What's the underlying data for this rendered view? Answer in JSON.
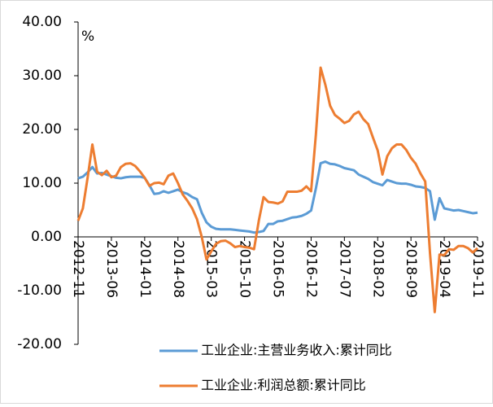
{
  "chart_data": {
    "type": "line",
    "y_label": "%",
    "ylim": [
      -20,
      40
    ],
    "yticks": [
      {
        "value": -20,
        "label": "-20.00"
      },
      {
        "value": -10,
        "label": "-10.00"
      },
      {
        "value": 0,
        "label": "0.00"
      },
      {
        "value": 10,
        "label": "10.00"
      },
      {
        "value": 20,
        "label": "20.00"
      },
      {
        "value": 30,
        "label": "30.00"
      },
      {
        "value": 40,
        "label": "40.00"
      }
    ],
    "categories": [
      "2012-11",
      null,
      null,
      null,
      null,
      null,
      null,
      "2013-06",
      null,
      null,
      null,
      null,
      null,
      null,
      "2014-01",
      null,
      null,
      null,
      null,
      null,
      null,
      "2014-08",
      null,
      null,
      null,
      null,
      null,
      null,
      "2015-03",
      null,
      null,
      null,
      null,
      null,
      null,
      "2015-10",
      null,
      null,
      null,
      null,
      null,
      null,
      "2016-05",
      null,
      null,
      null,
      null,
      null,
      null,
      "2016-12",
      null,
      null,
      null,
      null,
      null,
      null,
      "2017-07",
      null,
      null,
      null,
      null,
      null,
      null,
      "2018-02",
      null,
      null,
      null,
      null,
      null,
      null,
      "2018-09",
      null,
      null,
      null,
      null,
      null,
      null,
      "2019-04",
      null,
      null,
      null,
      null,
      null,
      null,
      "2019-11"
    ],
    "series": [
      {
        "name": "工业企业:主营业务收入:累计同比",
        "color": "#5b9bd5",
        "values": [
          10.9,
          11.2,
          12.0,
          13.0,
          11.8,
          11.9,
          11.6,
          11.3,
          11.0,
          10.9,
          11.1,
          11.2,
          11.2,
          11.2,
          11.0,
          9.6,
          8.0,
          8.1,
          8.5,
          8.2,
          8.5,
          8.8,
          8.3,
          8.0,
          7.4,
          7.0,
          4.5,
          2.7,
          1.9,
          1.5,
          1.4,
          1.4,
          1.4,
          1.3,
          1.2,
          1.1,
          1.0,
          0.8,
          0.9,
          1.1,
          2.4,
          2.4,
          2.9,
          3.0,
          3.3,
          3.6,
          3.7,
          3.9,
          4.3,
          4.9,
          9.0,
          13.7,
          14.0,
          13.6,
          13.5,
          13.2,
          12.8,
          12.6,
          12.4,
          11.6,
          11.2,
          10.8,
          10.2,
          9.9,
          9.6,
          10.6,
          10.3,
          10.0,
          9.9,
          9.9,
          9.7,
          9.4,
          9.3,
          9.1,
          8.5,
          3.2,
          7.2,
          5.3,
          5.1,
          4.9,
          5.0,
          4.8,
          4.6,
          4.4,
          4.5
        ]
      },
      {
        "name": "工业企业:利润总额:累计同比",
        "color": "#ed7d31",
        "values": [
          3.0,
          5.3,
          11.0,
          17.2,
          12.1,
          11.5,
          12.3,
          11.1,
          11.4,
          13.0,
          13.6,
          13.7,
          13.2,
          12.2,
          11.0,
          9.5,
          10.0,
          10.1,
          9.8,
          11.4,
          11.8,
          10.0,
          7.9,
          6.7,
          5.3,
          3.3,
          0.0,
          -4.2,
          -2.7,
          -1.3,
          -0.8,
          -0.7,
          -1.2,
          -1.9,
          -1.7,
          -1.9,
          -2.0,
          -2.3,
          3.0,
          7.4,
          6.5,
          6.4,
          6.2,
          6.6,
          8.4,
          8.4,
          8.4,
          8.6,
          9.4,
          8.5,
          19.0,
          31.5,
          28.3,
          24.4,
          22.7,
          22.0,
          21.2,
          21.6,
          22.8,
          23.3,
          21.9,
          21.0,
          18.5,
          16.1,
          11.6,
          15.0,
          16.5,
          17.2,
          17.2,
          16.2,
          14.7,
          13.6,
          11.8,
          10.3,
          -3.0,
          -14.0,
          -3.3,
          -3.4,
          -2.3,
          -2.4,
          -1.7,
          -1.7,
          -2.1,
          -2.9,
          -2.1
        ]
      }
    ]
  }
}
